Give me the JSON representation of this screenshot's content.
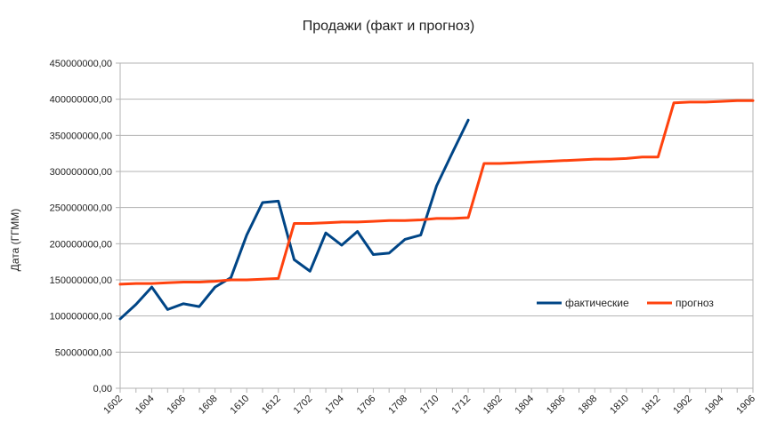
{
  "chart_data": {
    "type": "line",
    "title": "Продажи (факт и прогноз)",
    "xlabel": "",
    "ylabel": "Дата (ГГММ)",
    "ylim": [
      0,
      450000000
    ],
    "y_ticks": [
      "0,00",
      "50000000,00",
      "100000000,00",
      "150000000,00",
      "200000000,00",
      "250000000,00",
      "300000000,00",
      "350000000,00",
      "400000000,00",
      "450000000,00"
    ],
    "grid": true,
    "legend_position": "right",
    "categories": [
      "1602",
      "1603",
      "1604",
      "1605",
      "1606",
      "1607",
      "1608",
      "1609",
      "1610",
      "1611",
      "1612",
      "1701",
      "1702",
      "1703",
      "1704",
      "1705",
      "1706",
      "1707",
      "1708",
      "1709",
      "1710",
      "1711",
      "1712",
      "1801",
      "1802",
      "1803",
      "1804",
      "1805",
      "1806",
      "1807",
      "1808",
      "1809",
      "1810",
      "1811",
      "1812",
      "1901",
      "1902",
      "1903",
      "1904",
      "1905",
      "1906"
    ],
    "x_tick_labels": [
      "1602",
      "1604",
      "1606",
      "1608",
      "1610",
      "1612",
      "1702",
      "1704",
      "1706",
      "1708",
      "1710",
      "1712",
      "1802",
      "1804",
      "1806",
      "1808",
      "1810",
      "1812",
      "1902",
      "1904",
      "1906"
    ],
    "series": [
      {
        "name": "фактические",
        "color": "#004586",
        "values": [
          96000000,
          116000000,
          140000000,
          109000000,
          117000000,
          113000000,
          140000000,
          153000000,
          212000000,
          257000000,
          259000000,
          178000000,
          162000000,
          215000000,
          198000000,
          217000000,
          185000000,
          187000000,
          206000000,
          212000000,
          280000000,
          326000000,
          371000000,
          null,
          null,
          null,
          null,
          null,
          null,
          null,
          null,
          null,
          null,
          null,
          null,
          null,
          null,
          null,
          null,
          null,
          null
        ]
      },
      {
        "name": "прогноз",
        "color": "#ff420e",
        "values": [
          144000000,
          145000000,
          145000000,
          146000000,
          147000000,
          147000000,
          148000000,
          150000000,
          150000000,
          151000000,
          152000000,
          228000000,
          228000000,
          229000000,
          230000000,
          230000000,
          231000000,
          232000000,
          232000000,
          233000000,
          235000000,
          235000000,
          236000000,
          311000000,
          311000000,
          312000000,
          313000000,
          314000000,
          315000000,
          316000000,
          317000000,
          317000000,
          318000000,
          320000000,
          320000000,
          395000000,
          396000000,
          396000000,
          397000000,
          398000000,
          398000000
        ]
      }
    ]
  }
}
